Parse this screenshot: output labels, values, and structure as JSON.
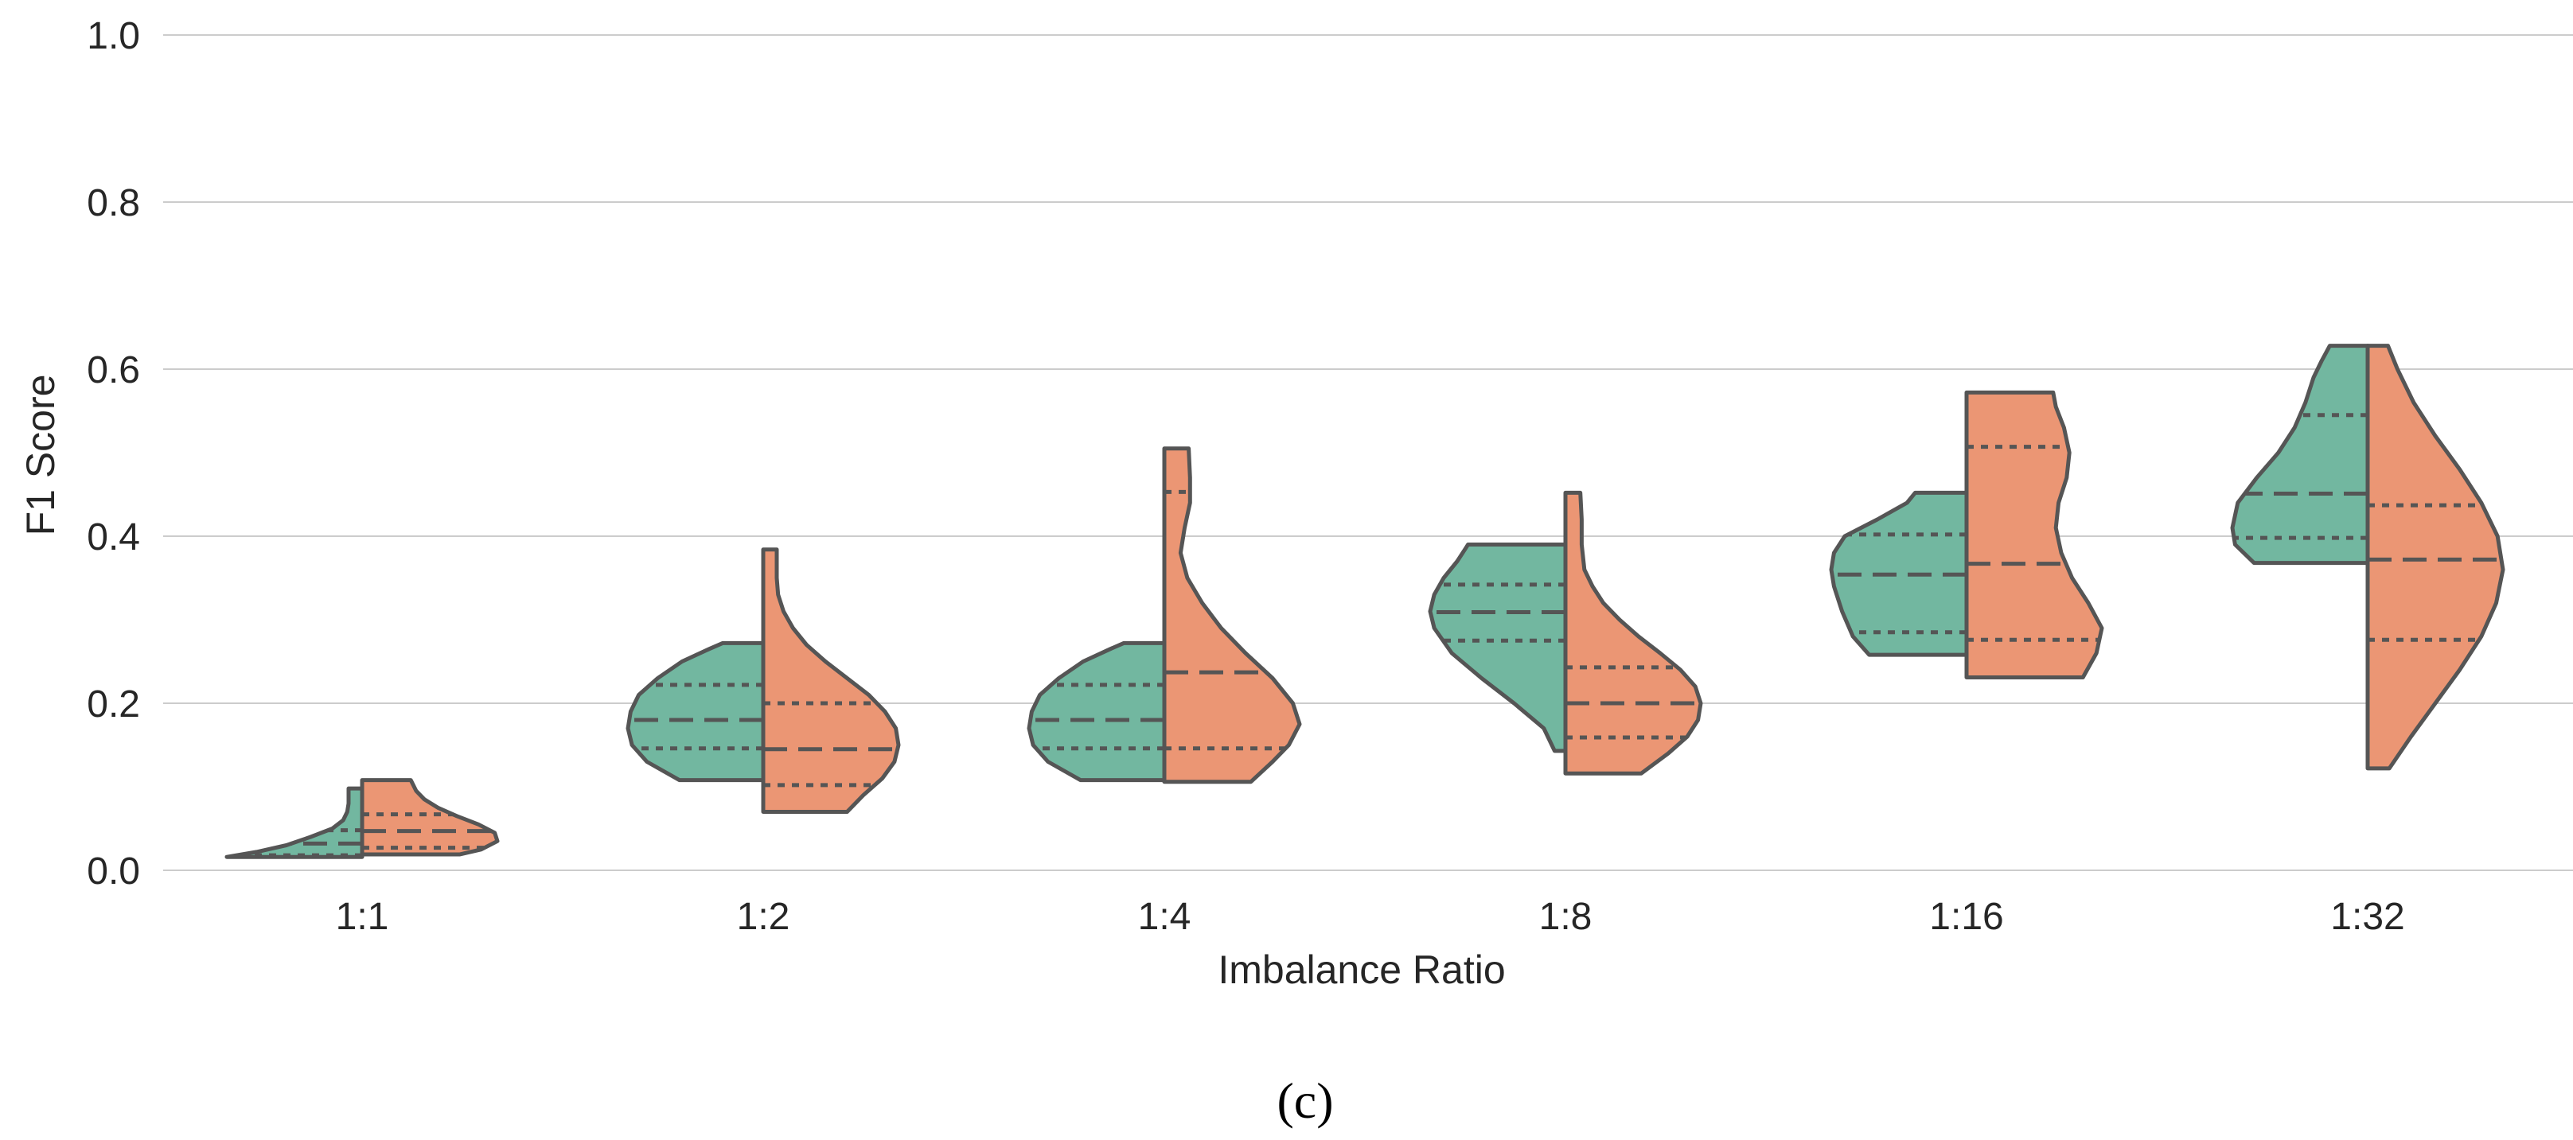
{
  "chart_data": {
    "type": "violin",
    "subtype": "split",
    "panel_label": "(c)",
    "xlabel": "Imbalance Ratio",
    "ylabel": "F1 Score",
    "ylim": [
      0.0,
      1.0
    ],
    "yticks": [
      "0.0",
      "0.2",
      "0.4",
      "0.6",
      "0.8",
      "1.0"
    ],
    "categories": [
      "1:1",
      "1:2",
      "1:4",
      "1:8",
      "1:16",
      "1:32"
    ],
    "grid": "horizontal",
    "legend": "none",
    "colors": {
      "left": "#72b7a0",
      "right": "#eb9674",
      "edge": "#555555"
    },
    "series": [
      {
        "name": "left",
        "side": "left",
        "violins": [
          {
            "min": 0.016,
            "q1": 0.018,
            "median": 0.032,
            "q3": 0.048,
            "max": 0.098,
            "profile": [
              [
                0.016,
                1.0
              ],
              [
                0.022,
                0.78
              ],
              [
                0.03,
                0.56
              ],
              [
                0.04,
                0.38
              ],
              [
                0.05,
                0.22
              ],
              [
                0.06,
                0.14
              ],
              [
                0.07,
                0.11
              ],
              [
                0.08,
                0.1
              ],
              [
                0.09,
                0.1
              ],
              [
                0.098,
                0.1
              ]
            ]
          },
          {
            "min": 0.108,
            "q1": 0.146,
            "median": 0.18,
            "q3": 0.222,
            "max": 0.272,
            "profile": [
              [
                0.108,
                0.62
              ],
              [
                0.13,
                0.86
              ],
              [
                0.15,
                0.97
              ],
              [
                0.17,
                1.0
              ],
              [
                0.19,
                0.98
              ],
              [
                0.21,
                0.92
              ],
              [
                0.23,
                0.78
              ],
              [
                0.25,
                0.6
              ],
              [
                0.265,
                0.4
              ],
              [
                0.272,
                0.3
              ]
            ]
          },
          {
            "min": 0.108,
            "q1": 0.146,
            "median": 0.18,
            "q3": 0.222,
            "max": 0.272,
            "profile": [
              [
                0.108,
                0.62
              ],
              [
                0.13,
                0.86
              ],
              [
                0.15,
                0.97
              ],
              [
                0.17,
                1.0
              ],
              [
                0.19,
                0.98
              ],
              [
                0.21,
                0.92
              ],
              [
                0.23,
                0.78
              ],
              [
                0.25,
                0.6
              ],
              [
                0.265,
                0.4
              ],
              [
                0.272,
                0.3
              ]
            ]
          },
          {
            "min": 0.143,
            "q1": 0.275,
            "median": 0.309,
            "q3": 0.342,
            "max": 0.39,
            "profile": [
              [
                0.143,
                0.08
              ],
              [
                0.17,
                0.16
              ],
              [
                0.2,
                0.38
              ],
              [
                0.23,
                0.62
              ],
              [
                0.26,
                0.84
              ],
              [
                0.29,
                0.97
              ],
              [
                0.31,
                1.0
              ],
              [
                0.33,
                0.97
              ],
              [
                0.35,
                0.9
              ],
              [
                0.37,
                0.8
              ],
              [
                0.385,
                0.74
              ],
              [
                0.39,
                0.72
              ]
            ]
          },
          {
            "min": 0.258,
            "q1": 0.285,
            "median": 0.354,
            "q3": 0.402,
            "max": 0.452,
            "profile": [
              [
                0.258,
                0.72
              ],
              [
                0.28,
                0.84
              ],
              [
                0.31,
                0.92
              ],
              [
                0.34,
                0.98
              ],
              [
                0.36,
                1.0
              ],
              [
                0.38,
                0.98
              ],
              [
                0.4,
                0.9
              ],
              [
                0.42,
                0.66
              ],
              [
                0.44,
                0.44
              ],
              [
                0.452,
                0.38
              ]
            ]
          },
          {
            "min": 0.368,
            "q1": 0.398,
            "median": 0.451,
            "q3": 0.545,
            "max": 0.628,
            "profile": [
              [
                0.368,
                0.84
              ],
              [
                0.39,
                0.98
              ],
              [
                0.41,
                1.0
              ],
              [
                0.44,
                0.96
              ],
              [
                0.47,
                0.82
              ],
              [
                0.5,
                0.66
              ],
              [
                0.53,
                0.54
              ],
              [
                0.56,
                0.46
              ],
              [
                0.59,
                0.4
              ],
              [
                0.61,
                0.34
              ],
              [
                0.628,
                0.28
              ]
            ]
          }
        ]
      },
      {
        "name": "right",
        "side": "right",
        "violins": [
          {
            "min": 0.019,
            "q1": 0.027,
            "median": 0.047,
            "q3": 0.067,
            "max": 0.108,
            "profile": [
              [
                0.019,
                0.72
              ],
              [
                0.025,
                0.88
              ],
              [
                0.035,
                1.0
              ],
              [
                0.045,
                0.98
              ],
              [
                0.055,
                0.86
              ],
              [
                0.065,
                0.7
              ],
              [
                0.075,
                0.56
              ],
              [
                0.085,
                0.46
              ],
              [
                0.095,
                0.4
              ],
              [
                0.108,
                0.36
              ]
            ]
          },
          {
            "min": 0.07,
            "q1": 0.102,
            "median": 0.145,
            "q3": 0.2,
            "max": 0.384,
            "profile": [
              [
                0.07,
                0.62
              ],
              [
                0.09,
                0.74
              ],
              [
                0.11,
                0.88
              ],
              [
                0.13,
                0.97
              ],
              [
                0.15,
                1.0
              ],
              [
                0.17,
                0.98
              ],
              [
                0.19,
                0.9
              ],
              [
                0.21,
                0.78
              ],
              [
                0.23,
                0.62
              ],
              [
                0.25,
                0.46
              ],
              [
                0.27,
                0.32
              ],
              [
                0.29,
                0.22
              ],
              [
                0.31,
                0.15
              ],
              [
                0.33,
                0.11
              ],
              [
                0.35,
                0.1
              ],
              [
                0.384,
                0.1
              ]
            ]
          },
          {
            "min": 0.106,
            "q1": 0.146,
            "median": 0.237,
            "q3": 0.453,
            "max": 0.505,
            "profile": [
              [
                0.106,
                0.64
              ],
              [
                0.13,
                0.8
              ],
              [
                0.15,
                0.92
              ],
              [
                0.175,
                1.0
              ],
              [
                0.2,
                0.95
              ],
              [
                0.23,
                0.8
              ],
              [
                0.26,
                0.6
              ],
              [
                0.29,
                0.42
              ],
              [
                0.32,
                0.28
              ],
              [
                0.35,
                0.17
              ],
              [
                0.38,
                0.12
              ],
              [
                0.41,
                0.15
              ],
              [
                0.44,
                0.19
              ],
              [
                0.47,
                0.19
              ],
              [
                0.505,
                0.18
              ]
            ]
          },
          {
            "min": 0.116,
            "q1": 0.159,
            "median": 0.2,
            "q3": 0.243,
            "max": 0.452,
            "profile": [
              [
                0.116,
                0.56
              ],
              [
                0.14,
                0.76
              ],
              [
                0.16,
                0.9
              ],
              [
                0.18,
                0.98
              ],
              [
                0.2,
                1.0
              ],
              [
                0.22,
                0.96
              ],
              [
                0.24,
                0.85
              ],
              [
                0.26,
                0.7
              ],
              [
                0.28,
                0.54
              ],
              [
                0.3,
                0.4
              ],
              [
                0.32,
                0.28
              ],
              [
                0.34,
                0.2
              ],
              [
                0.36,
                0.14
              ],
              [
                0.39,
                0.12
              ],
              [
                0.42,
                0.12
              ],
              [
                0.452,
                0.11
              ]
            ]
          },
          {
            "min": 0.231,
            "q1": 0.276,
            "median": 0.367,
            "q3": 0.507,
            "max": 0.572,
            "profile": [
              [
                0.231,
                0.86
              ],
              [
                0.26,
                0.96
              ],
              [
                0.29,
                1.0
              ],
              [
                0.32,
                0.9
              ],
              [
                0.35,
                0.78
              ],
              [
                0.38,
                0.7
              ],
              [
                0.41,
                0.66
              ],
              [
                0.44,
                0.68
              ],
              [
                0.47,
                0.74
              ],
              [
                0.5,
                0.76
              ],
              [
                0.53,
                0.72
              ],
              [
                0.555,
                0.66
              ],
              [
                0.572,
                0.64
              ]
            ]
          },
          {
            "min": 0.122,
            "q1": 0.276,
            "median": 0.372,
            "q3": 0.437,
            "max": 0.628,
            "profile": [
              [
                0.122,
                0.16
              ],
              [
                0.16,
                0.32
              ],
              [
                0.2,
                0.5
              ],
              [
                0.24,
                0.68
              ],
              [
                0.28,
                0.84
              ],
              [
                0.32,
                0.95
              ],
              [
                0.36,
                1.0
              ],
              [
                0.4,
                0.96
              ],
              [
                0.44,
                0.84
              ],
              [
                0.48,
                0.68
              ],
              [
                0.52,
                0.5
              ],
              [
                0.56,
                0.34
              ],
              [
                0.6,
                0.22
              ],
              [
                0.628,
                0.15
              ]
            ]
          }
        ]
      }
    ]
  }
}
